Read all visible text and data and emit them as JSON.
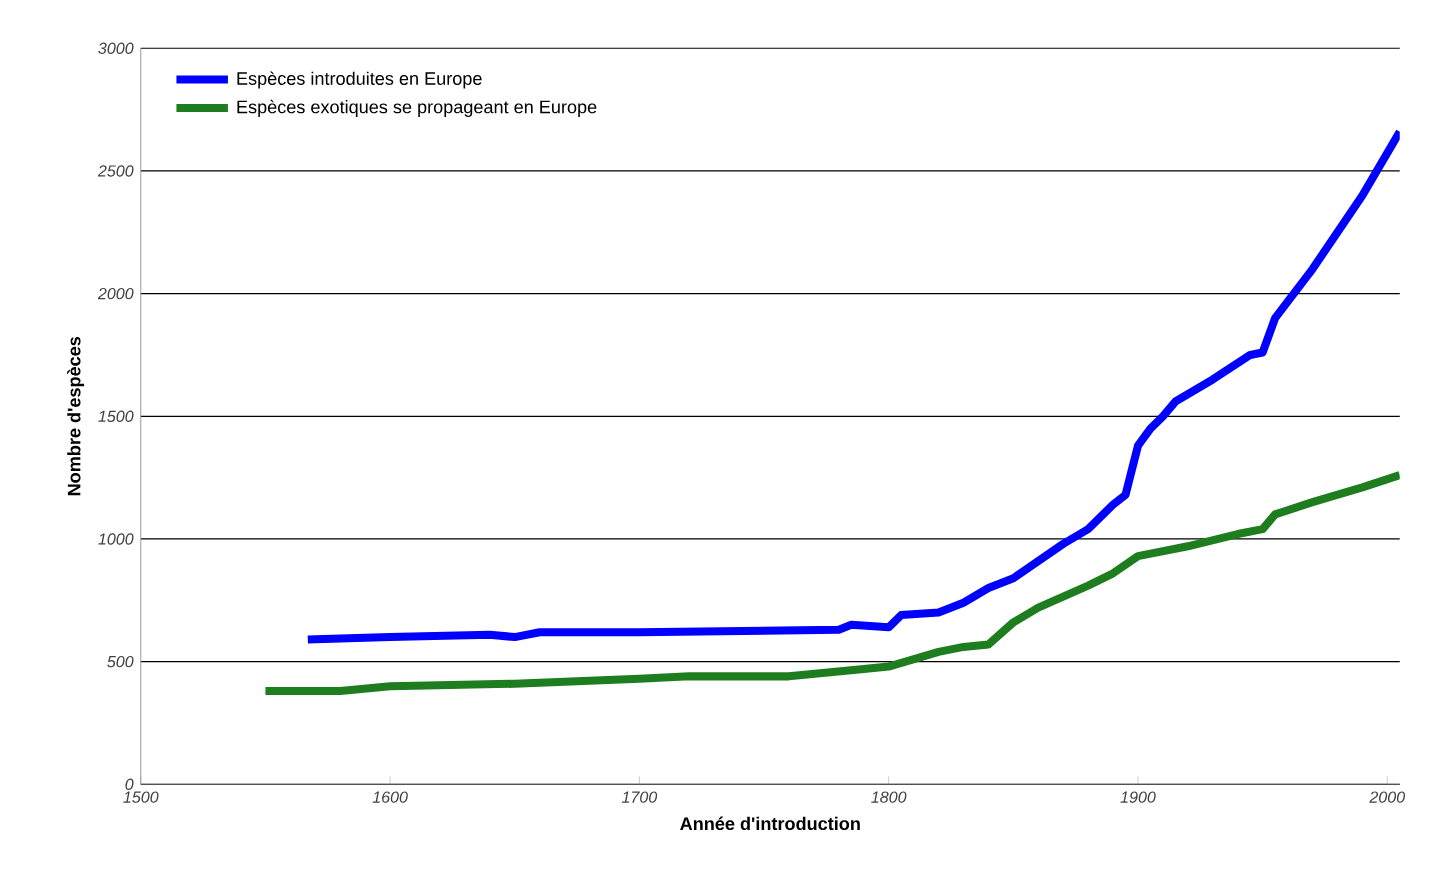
{
  "chart_data": {
    "type": "line",
    "xlabel": "Année d'introduction",
    "ylabel": "Nombre d'espèces",
    "xlim": [
      1500,
      2005
    ],
    "xticks": [
      1500,
      1600,
      1700,
      1800,
      1900,
      2000
    ],
    "ylim": [
      0,
      3000
    ],
    "yticks": [
      0,
      500,
      1000,
      1500,
      2000,
      2500,
      3000
    ],
    "grid": "y",
    "legend": "top left",
    "series": [
      {
        "name": "Espèces introduites en Europe",
        "color": "#0000ff",
        "x": [
          1567,
          1600,
          1640,
          1650,
          1660,
          1700,
          1780,
          1785,
          1800,
          1805,
          1820,
          1830,
          1840,
          1850,
          1860,
          1870,
          1880,
          1890,
          1895,
          1900,
          1905,
          1910,
          1915,
          1930,
          1945,
          1950,
          1955,
          1970,
          1990,
          2005
        ],
        "values": [
          590,
          600,
          610,
          600,
          620,
          620,
          630,
          650,
          640,
          690,
          700,
          740,
          800,
          840,
          910,
          980,
          1040,
          1140,
          1180,
          1380,
          1450,
          1500,
          1560,
          1650,
          1750,
          1760,
          1900,
          2100,
          2400,
          2660
        ]
      },
      {
        "name": "Espèces exotiques se propageant en Europe",
        "color": "#1e7d1e",
        "x": [
          1550,
          1580,
          1600,
          1650,
          1700,
          1720,
          1760,
          1790,
          1800,
          1820,
          1830,
          1840,
          1850,
          1860,
          1880,
          1890,
          1900,
          1920,
          1940,
          1950,
          1955,
          1970,
          1990,
          2005
        ],
        "values": [
          380,
          380,
          400,
          410,
          430,
          440,
          440,
          470,
          480,
          540,
          560,
          570,
          660,
          720,
          810,
          860,
          930,
          970,
          1020,
          1040,
          1100,
          1150,
          1210,
          1260
        ]
      }
    ]
  }
}
